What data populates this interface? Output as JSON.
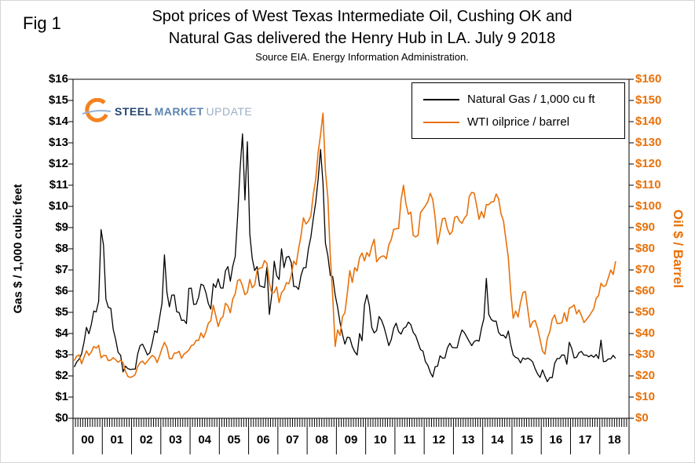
{
  "header": {
    "fig_label": "Fig 1",
    "title_line1": "Spot prices of West Texas Intermediate Oil, Cushing OK and",
    "title_line2": "Natural Gas delivered the Henry Hub in LA. July 9 2018",
    "subtitle": "Source EIA. Energy Information Administration."
  },
  "logo": {
    "word1": "STEEL",
    "word2": "MARKET",
    "word3": "UPDATE"
  },
  "legend": {
    "items": [
      {
        "label": "Natural Gas / 1,000 cu ft",
        "color": "#000000"
      },
      {
        "label": "WTI oilprice / barrel",
        "color": "#E8710A"
      }
    ]
  },
  "chart_data": {
    "type": "line",
    "title": "Spot prices of West Texas Intermediate Oil, Cushing OK and Natural Gas delivered the Henry Hub in LA. July 9 2018",
    "subtitle": "Source EIA. Energy Information Administration.",
    "x_start_year": 2000,
    "x_interval": "monthly",
    "x_tick_labels": [
      "00",
      "01",
      "02",
      "03",
      "04",
      "05",
      "06",
      "07",
      "08",
      "09",
      "10",
      "11",
      "12",
      "13",
      "14",
      "15",
      "16",
      "17",
      "18"
    ],
    "grid": false,
    "legend_position": "top-right-inside",
    "left_axis": {
      "label": "Gas $ / 1,000 cubic feet",
      "min": 0,
      "max": 16,
      "tick_step": 1,
      "tick_labels": [
        "$0",
        "$1",
        "$2",
        "$3",
        "$4",
        "$5",
        "$6",
        "$7",
        "$8",
        "$9",
        "$10",
        "$11",
        "$12",
        "$13",
        "$14",
        "$15",
        "$16"
      ]
    },
    "right_axis": {
      "label": "Oil $ / Barrel",
      "min": 0,
      "max": 160,
      "tick_step": 10,
      "color": "#E8710A",
      "tick_labels": [
        "$0",
        "$10",
        "$20",
        "$30",
        "$40",
        "$50",
        "$60",
        "$70",
        "$80",
        "$90",
        "$100",
        "$110",
        "$120",
        "$130",
        "$140",
        "$150",
        "$160"
      ]
    },
    "series": [
      {
        "name": "Natural Gas / 1,000 cu ft",
        "axis": "left",
        "color": "#000000",
        "unit": "$ per 1,000 cubic feet",
        "start": "2000-01",
        "values": [
          2.42,
          2.66,
          2.79,
          3.04,
          3.59,
          4.29,
          3.99,
          4.43,
          5.06,
          5.02,
          5.52,
          8.9,
          8.17,
          5.61,
          5.23,
          5.19,
          4.19,
          3.72,
          3.11,
          2.97,
          2.19,
          2.46,
          2.34,
          2.3,
          2.32,
          2.32,
          3.03,
          3.43,
          3.5,
          3.26,
          2.99,
          3.09,
          3.55,
          4.13,
          4.04,
          4.74,
          5.43,
          7.71,
          5.93,
          5.26,
          5.81,
          5.82,
          5.03,
          4.99,
          4.62,
          4.63,
          4.47,
          6.13,
          6.14,
          5.37,
          5.39,
          5.71,
          6.33,
          6.27,
          5.93,
          5.41,
          5.15,
          6.35,
          6.17,
          6.58,
          6.15,
          6.14,
          6.96,
          7.16,
          6.47,
          7.18,
          7.63,
          9.53,
          11.75,
          13.42,
          10.3,
          13.05,
          8.69,
          7.54,
          6.97,
          7.16,
          6.25,
          6.21,
          6.17,
          7.14,
          4.9,
          5.85,
          7.41,
          6.73,
          6.55,
          8.0,
          7.11,
          7.6,
          7.64,
          7.35,
          6.22,
          6.22,
          6.08,
          6.74,
          7.1,
          7.11,
          7.99,
          8.54,
          9.41,
          10.18,
          11.27,
          12.69,
          11.09,
          8.26,
          7.67,
          6.74,
          6.68,
          5.82,
          5.24,
          4.52,
          3.96,
          3.5,
          3.83,
          3.8,
          3.38,
          3.14,
          2.99,
          4.0,
          3.66,
          5.35,
          5.83,
          5.32,
          4.29,
          4.03,
          4.14,
          4.8,
          4.63,
          4.32,
          3.89,
          3.43,
          3.71,
          4.25,
          4.49,
          4.09,
          3.97,
          4.24,
          4.31,
          4.54,
          4.42,
          4.05,
          3.9,
          3.57,
          3.24,
          3.17,
          2.67,
          2.5,
          2.17,
          1.95,
          2.43,
          2.46,
          2.95,
          2.84,
          2.85,
          3.32,
          3.54,
          3.34,
          3.33,
          3.33,
          3.81,
          4.17,
          4.04,
          3.83,
          3.62,
          3.43,
          3.62,
          3.68,
          3.64,
          4.24,
          4.71,
          6.6,
          4.9,
          4.66,
          4.58,
          4.59,
          4.05,
          3.91,
          3.92,
          3.78,
          4.12,
          3.48,
          2.99,
          2.87,
          2.83,
          2.61,
          2.85,
          2.78,
          2.84,
          2.77,
          2.66,
          2.34,
          2.09,
          1.93,
          2.28,
          1.99,
          1.73,
          1.92,
          1.92,
          2.59,
          2.82,
          2.82,
          2.99,
          2.98,
          2.55,
          3.59,
          3.3,
          2.85,
          2.88,
          3.1,
          3.15,
          2.98,
          2.98,
          2.9,
          2.98,
          2.88,
          3.01,
          2.82,
          3.69,
          2.67,
          2.69,
          2.8,
          2.8,
          2.97,
          2.83
        ]
      },
      {
        "name": "WTI oilprice / barrel",
        "axis": "right",
        "color": "#E8710A",
        "unit": "$ per barrel",
        "start": "2000-01",
        "values": [
          27.2,
          29.4,
          29.9,
          25.7,
          28.8,
          31.8,
          29.7,
          31.3,
          33.9,
          33.1,
          34.4,
          28.5,
          29.6,
          29.6,
          27.2,
          27.5,
          28.6,
          27.6,
          26.4,
          27.4,
          26.2,
          22.2,
          19.7,
          19.3,
          19.7,
          20.7,
          24.4,
          26.3,
          27.0,
          25.5,
          26.9,
          28.4,
          29.7,
          28.9,
          26.3,
          29.4,
          33.0,
          35.8,
          33.5,
          28.2,
          28.1,
          30.7,
          30.8,
          31.6,
          28.3,
          30.3,
          31.1,
          32.2,
          34.3,
          34.7,
          36.8,
          36.7,
          40.3,
          38.0,
          40.8,
          44.9,
          46.0,
          53.3,
          48.5,
          43.3,
          46.8,
          48.0,
          54.3,
          53.0,
          49.8,
          56.3,
          58.7,
          65.0,
          65.5,
          62.4,
          58.3,
          59.4,
          65.5,
          61.6,
          62.9,
          69.7,
          70.9,
          71.0,
          74.4,
          73.1,
          63.9,
          59.1,
          59.4,
          62.0,
          54.6,
          59.3,
          60.6,
          64.0,
          63.5,
          67.5,
          74.2,
          72.4,
          79.9,
          86.2,
          94.6,
          91.7,
          93.0,
          95.4,
          105.6,
          112.6,
          125.4,
          133.9,
          144.0,
          116.7,
          104.1,
          76.6,
          57.3,
          33.9,
          41.7,
          39.1,
          48.0,
          49.8,
          59.2,
          69.7,
          64.1,
          71.1,
          69.5,
          75.8,
          78.0,
          74.3,
          78.2,
          76.4,
          81.2,
          84.5,
          73.8,
          75.4,
          76.4,
          76.6,
          75.3,
          81.9,
          84.3,
          89.2,
          89.4,
          89.6,
          103.0,
          110.0,
          101.3,
          96.3,
          97.3,
          86.3,
          85.6,
          86.4,
          97.1,
          98.6,
          100.3,
          102.3,
          106.2,
          103.3,
          94.7,
          82.3,
          87.9,
          94.1,
          94.5,
          89.5,
          86.7,
          88.2,
          94.8,
          95.3,
          93.0,
          92.0,
          94.5,
          95.8,
          104.7,
          106.6,
          106.3,
          100.5,
          93.9,
          97.6,
          94.6,
          100.8,
          100.8,
          102.1,
          102.2,
          105.8,
          103.6,
          96.5,
          93.2,
          84.4,
          75.8,
          59.3,
          47.2,
          50.6,
          47.8,
          54.5,
          59.3,
          59.8,
          51.2,
          42.9,
          45.5,
          46.2,
          42.4,
          37.2,
          31.7,
          30.3,
          37.8,
          40.8,
          46.7,
          48.8,
          44.7,
          44.7,
          45.2,
          49.8,
          45.7,
          52.0,
          52.5,
          53.5,
          49.3,
          51.1,
          48.5,
          45.2,
          46.6,
          48.0,
          49.8,
          51.6,
          56.6,
          57.9,
          63.7,
          62.2,
          62.7,
          66.3,
          70.0,
          67.9,
          74.1
        ]
      }
    ]
  }
}
